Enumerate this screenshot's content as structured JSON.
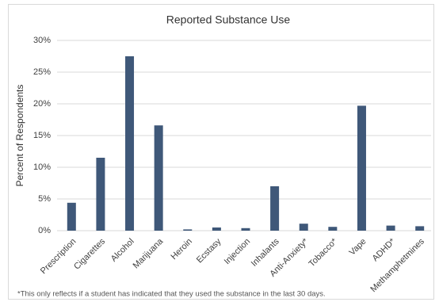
{
  "chart_data": {
    "type": "bar",
    "title": "Reported Substance Use",
    "y_label": "Percent of Respondents",
    "categories": [
      "Prescription",
      "Cigarettes",
      "Alcohol",
      "Marijuana",
      "Heroin",
      "Ecstasy",
      "Injection",
      "Inhalants",
      "Anti-Anxiety*",
      "Tobacco*",
      "Vape",
      "ADHD*",
      "Methamphetmines"
    ],
    "values": [
      4.4,
      11.5,
      27.5,
      16.6,
      0.2,
      0.5,
      0.4,
      7.0,
      1.1,
      0.6,
      19.7,
      0.8,
      0.7
    ],
    "color": "#3f5879",
    "ylim": [
      0,
      30
    ],
    "yticks": [
      {
        "value": 0,
        "label": "0%"
      },
      {
        "value": 5,
        "label": "5%"
      },
      {
        "value": 10,
        "label": "10%"
      },
      {
        "value": 15,
        "label": "15%"
      },
      {
        "value": 20,
        "label": "20%"
      },
      {
        "value": 25,
        "label": "25%"
      },
      {
        "value": 30,
        "label": "30%"
      }
    ],
    "grid": true,
    "footnote": "*This only reflects if a student has indicated that they used the substance in the last 30 days."
  }
}
